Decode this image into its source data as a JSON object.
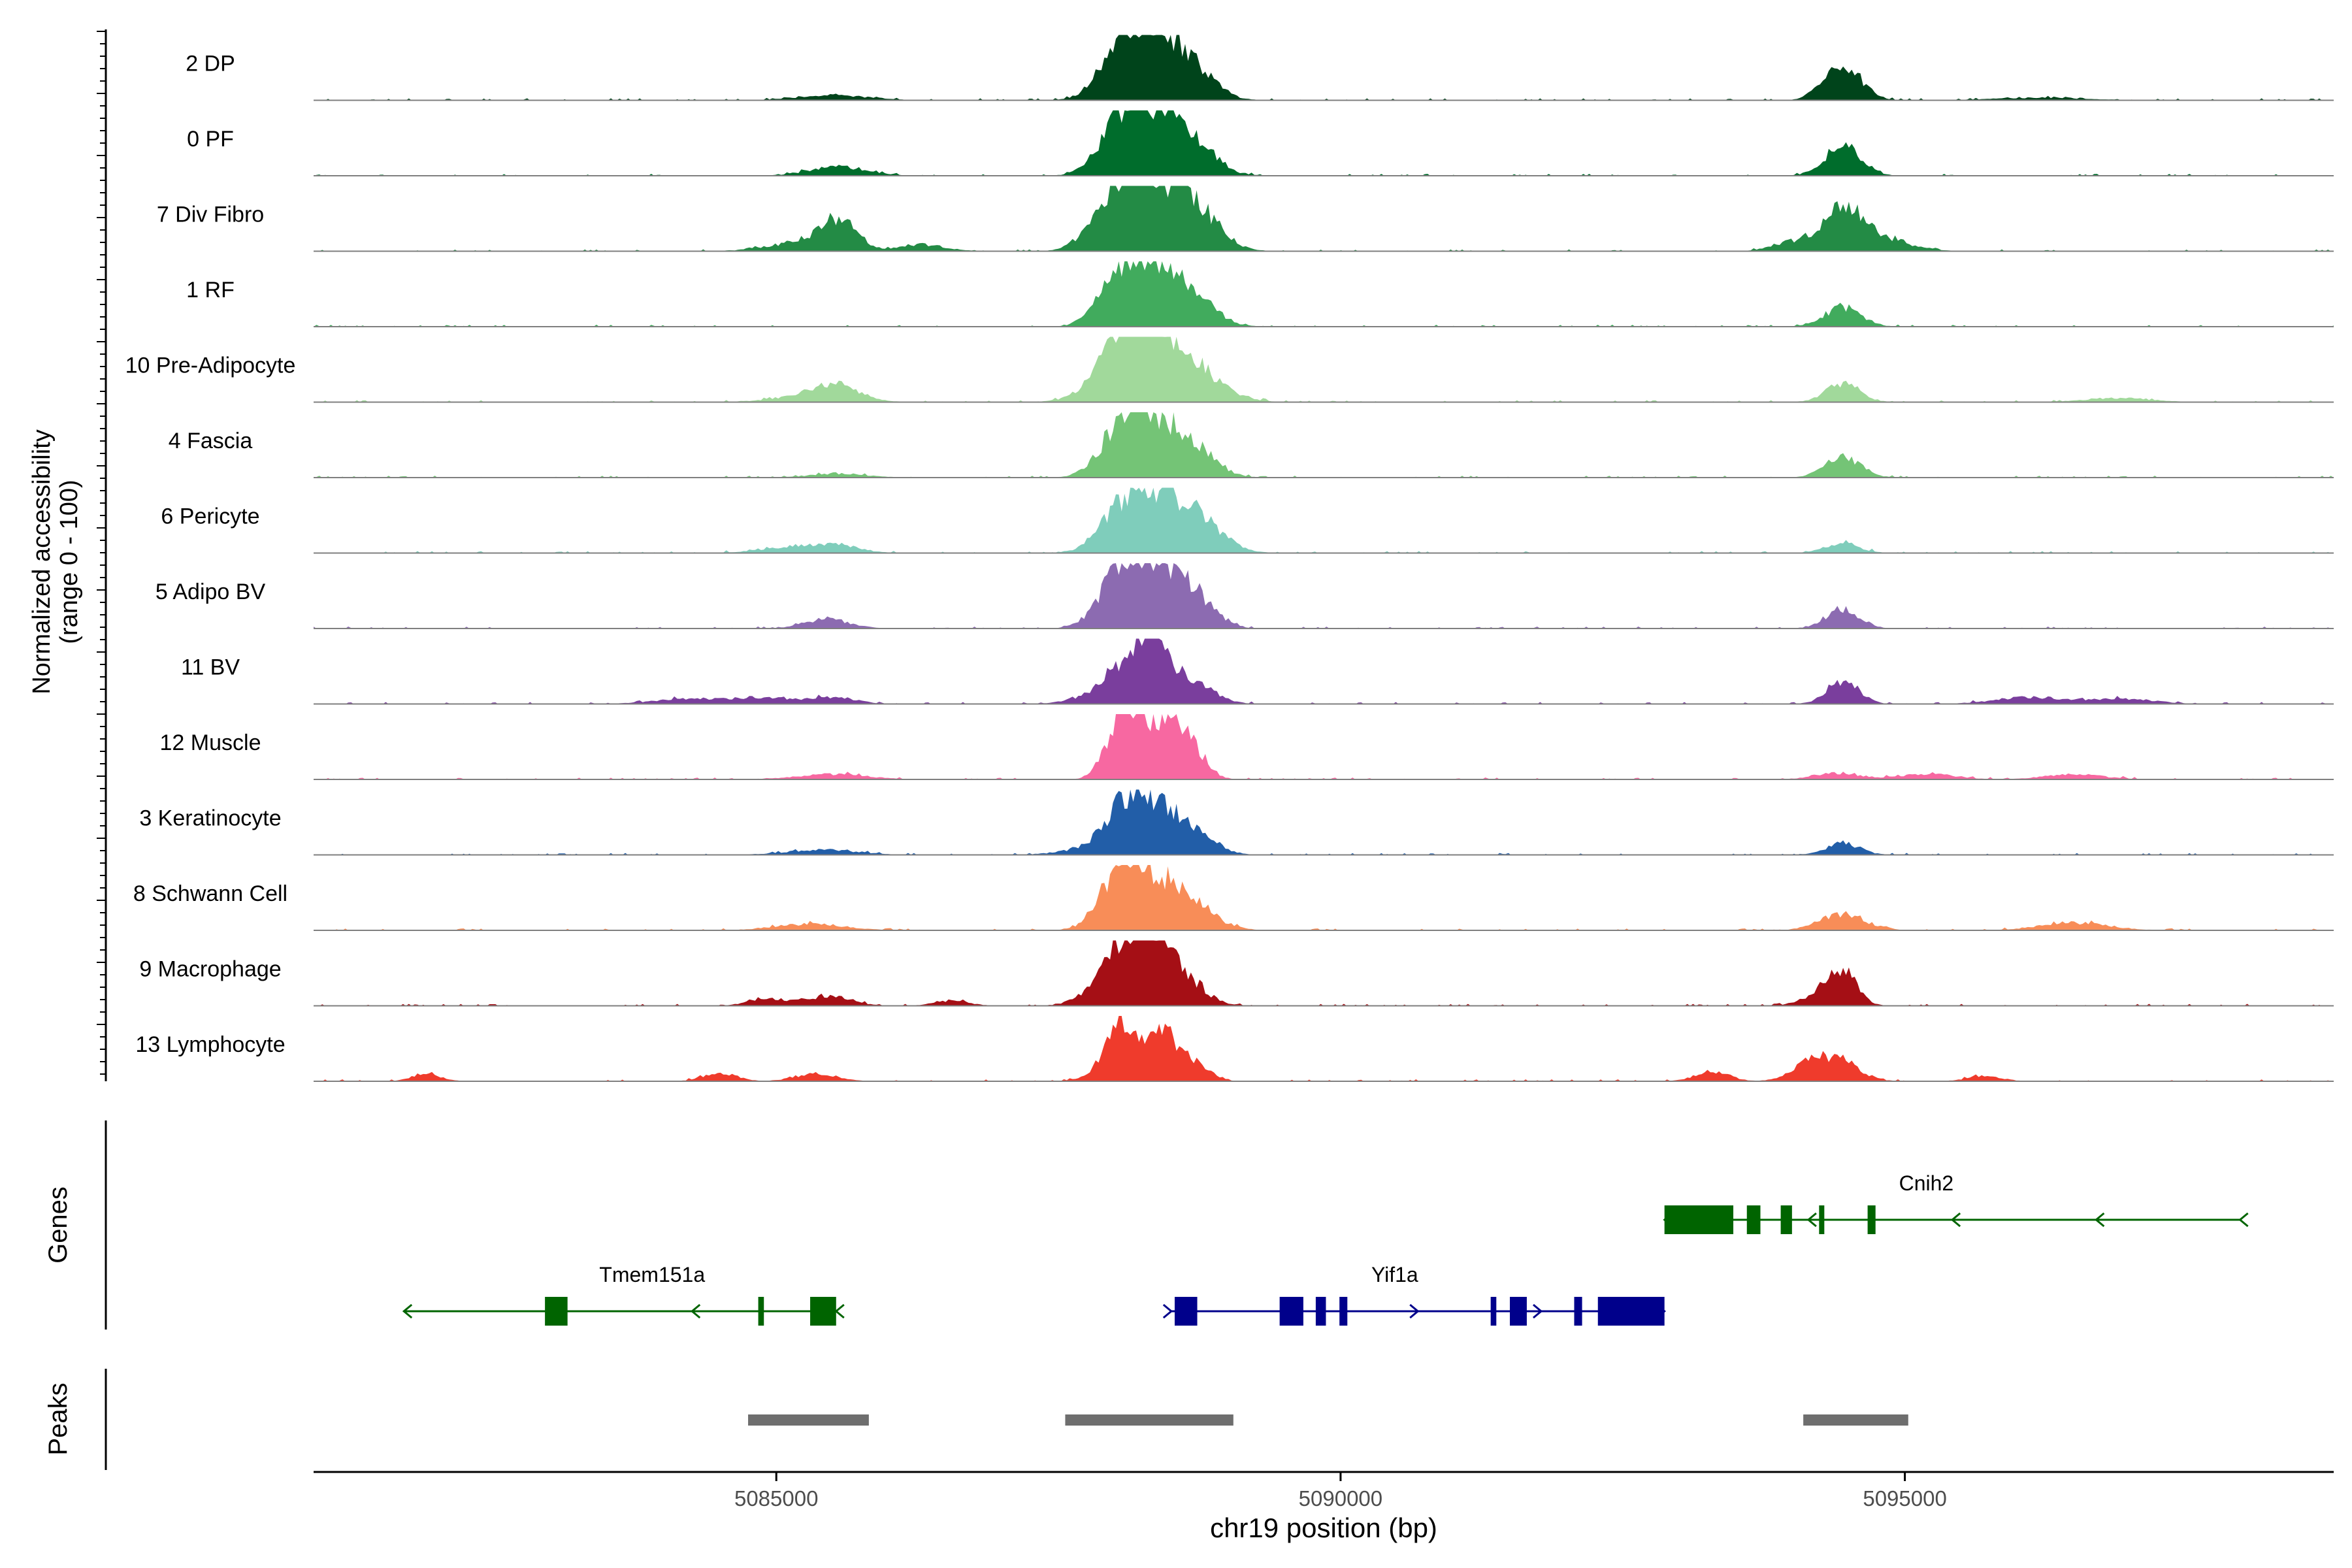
{
  "chart_data": {
    "type": "area",
    "title": "",
    "ylabel_line1": "Normalized accessibility",
    "ylabel_line2": "(range 0 - 100)",
    "xlabel": "chr19 position (bp)",
    "xlim": [
      5080900,
      5098800
    ],
    "xticks": [
      5085000,
      5090000,
      5095000
    ],
    "xtick_labels": [
      "5085000",
      "5090000",
      "5095000"
    ],
    "tracks": [
      {
        "name": "2 DP",
        "color": "#00441b",
        "peaks": [
          [
            5085500,
            8,
            300
          ],
          [
            5088050,
            70,
            190
          ],
          [
            5088400,
            85,
            230
          ],
          [
            5088700,
            30,
            200
          ],
          [
            5094450,
            55,
            160
          ],
          [
            5096200,
            4,
            400
          ]
        ]
      },
      {
        "name": "0 PF",
        "color": "#006d2c",
        "peaks": [
          [
            5085550,
            14,
            250
          ],
          [
            5088050,
            70,
            190
          ],
          [
            5088350,
            80,
            230
          ],
          [
            5088700,
            40,
            200
          ],
          [
            5094450,
            45,
            160
          ]
        ]
      },
      {
        "name": "7 Div Fibro",
        "color": "#238b45",
        "peaks": [
          [
            5085250,
            14,
            300
          ],
          [
            5085550,
            42,
            160
          ],
          [
            5086300,
            10,
            200
          ],
          [
            5088050,
            85,
            220
          ],
          [
            5088350,
            70,
            260
          ],
          [
            5088700,
            55,
            220
          ],
          [
            5094050,
            15,
            200
          ],
          [
            5094450,
            60,
            170
          ],
          [
            5094800,
            18,
            250
          ]
        ]
      },
      {
        "name": "1 RF",
        "color": "#41ab5d",
        "peaks": [
          [
            5088050,
            65,
            190
          ],
          [
            5088350,
            75,
            230
          ],
          [
            5088700,
            35,
            200
          ],
          [
            5094450,
            30,
            160
          ]
        ]
      },
      {
        "name": "10 Pre-Adipocyte",
        "color": "#a1d99b",
        "peaks": [
          [
            5085300,
            10,
            300
          ],
          [
            5085550,
            20,
            200
          ],
          [
            5087800,
            12,
            200
          ],
          [
            5088080,
            85,
            190
          ],
          [
            5088400,
            85,
            230
          ],
          [
            5088750,
            35,
            250
          ],
          [
            5094450,
            30,
            150
          ],
          [
            5096900,
            6,
            300
          ]
        ]
      },
      {
        "name": "4 Fascia",
        "color": "#74c476",
        "peaks": [
          [
            5085550,
            6,
            250
          ],
          [
            5088050,
            60,
            190
          ],
          [
            5088350,
            75,
            230
          ],
          [
            5088700,
            35,
            200
          ],
          [
            5094450,
            30,
            160
          ]
        ]
      },
      {
        "name": "6 Pericyte",
        "color": "#7fcdbb",
        "peaks": [
          [
            5085200,
            10,
            300
          ],
          [
            5085550,
            8,
            200
          ],
          [
            5088050,
            60,
            190
          ],
          [
            5088400,
            70,
            230
          ],
          [
            5088750,
            40,
            220
          ],
          [
            5094450,
            15,
            150
          ]
        ]
      },
      {
        "name": "5 Adipo BV",
        "color": "#8c6bb1",
        "peaks": [
          [
            5085450,
            14,
            200
          ],
          [
            5088050,
            70,
            190
          ],
          [
            5088350,
            85,
            230
          ],
          [
            5088700,
            40,
            180
          ],
          [
            5094450,
            30,
            150
          ]
        ]
      },
      {
        "name": "11 BV",
        "color": "#7a3e9d",
        "peaks": [
          [
            5084200,
            8,
            300
          ],
          [
            5084900,
            10,
            250
          ],
          [
            5085500,
            10,
            200
          ],
          [
            5087950,
            20,
            250
          ],
          [
            5088100,
            45,
            160
          ],
          [
            5088350,
            100,
            110
          ],
          [
            5088650,
            40,
            200
          ],
          [
            5094450,
            35,
            140
          ],
          [
            5096100,
            10,
            300
          ],
          [
            5096900,
            8,
            300
          ]
        ]
      },
      {
        "name": "12 Muscle",
        "color": "#f768a1",
        "peaks": [
          [
            5085500,
            8,
            300
          ],
          [
            5088000,
            55,
            120
          ],
          [
            5088150,
            70,
            100
          ],
          [
            5088400,
            85,
            140
          ],
          [
            5088650,
            55,
            140
          ],
          [
            5094400,
            10,
            200
          ],
          [
            5095200,
            8,
            250
          ],
          [
            5096500,
            8,
            250
          ]
        ]
      },
      {
        "name": "3 Keratinocyte",
        "color": "#225ea8",
        "peaks": [
          [
            5085400,
            8,
            300
          ],
          [
            5087950,
            15,
            300
          ],
          [
            5088100,
            45,
            170
          ],
          [
            5088350,
            60,
            230
          ],
          [
            5088700,
            25,
            200
          ],
          [
            5094450,
            18,
            150
          ]
        ]
      },
      {
        "name": "8 Schwann Cell",
        "color": "#f88d58",
        "peaks": [
          [
            5085300,
            10,
            300
          ],
          [
            5088050,
            80,
            180
          ],
          [
            5088350,
            55,
            230
          ],
          [
            5088650,
            35,
            230
          ],
          [
            5094450,
            25,
            200
          ],
          [
            5096500,
            12,
            300
          ]
        ]
      },
      {
        "name": "9 Macrophage",
        "color": "#a50f15",
        "peaks": [
          [
            5084900,
            12,
            150
          ],
          [
            5085450,
            15,
            200
          ],
          [
            5086550,
            8,
            150
          ],
          [
            5087950,
            40,
            200
          ],
          [
            5088100,
            70,
            140
          ],
          [
            5088350,
            90,
            130
          ],
          [
            5088600,
            45,
            180
          ],
          [
            5094300,
            20,
            180
          ],
          [
            5094450,
            45,
            120
          ]
        ]
      },
      {
        "name": "13 Lymphocyte",
        "color": "#ef3b2c",
        "peaks": [
          [
            5081900,
            12,
            120
          ],
          [
            5084500,
            12,
            150
          ],
          [
            5085350,
            12,
            180
          ],
          [
            5087900,
            15,
            150
          ],
          [
            5088050,
            90,
            110
          ],
          [
            5088400,
            80,
            130
          ],
          [
            5088700,
            30,
            130
          ],
          [
            5093300,
            15,
            150
          ],
          [
            5094100,
            20,
            150
          ],
          [
            5094400,
            35,
            180
          ],
          [
            5095700,
            8,
            150
          ]
        ]
      }
    ],
    "genes_label": "Genes",
    "genes": [
      {
        "name": "Tmem151a",
        "strand": "-",
        "color": "#006400",
        "start": 5081700,
        "end": 5085530,
        "exons": [
          [
            5082950,
            5083150
          ],
          [
            5084840,
            5084890
          ],
          [
            5085300,
            5085530
          ]
        ]
      },
      {
        "name": "Yif1a",
        "strand": "+",
        "color": "#00008b",
        "start": 5088500,
        "end": 5092870,
        "exons": [
          [
            5088530,
            5088730
          ],
          [
            5089460,
            5089670
          ],
          [
            5089780,
            5089870
          ],
          [
            5089990,
            5090060
          ],
          [
            5091330,
            5091380
          ],
          [
            5091500,
            5091650
          ],
          [
            5092070,
            5092140
          ],
          [
            5092280,
            5092870
          ]
        ]
      },
      {
        "name": "Cnih2",
        "strand": "-",
        "color": "#006400",
        "start": 5092870,
        "end": 5097970,
        "exons": [
          [
            5092870,
            5093480
          ],
          [
            5093600,
            5093720
          ],
          [
            5093900,
            5094000
          ],
          [
            5094240,
            5094280
          ],
          [
            5094670,
            5094740
          ]
        ]
      }
    ],
    "peaks_label": "Peaks",
    "peak_regions": [
      [
        5084750,
        5085820
      ],
      [
        5087560,
        5089050
      ],
      [
        5094100,
        5095030
      ]
    ]
  }
}
